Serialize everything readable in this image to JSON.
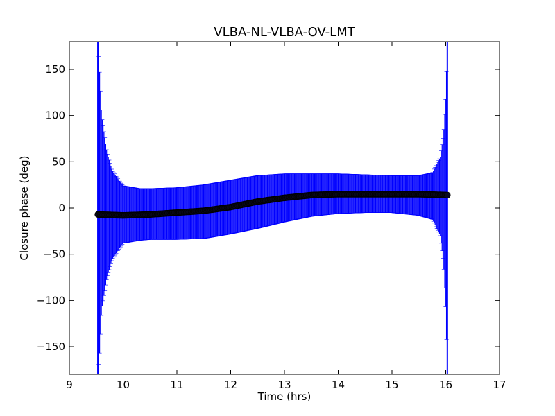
{
  "chart_data": {
    "type": "scatter",
    "title": "VLBA-NL-VLBA-OV-LMT",
    "xlabel": "Time (hrs)",
    "ylabel": "Closure phase (deg)",
    "xlim": [
      9,
      17
    ],
    "ylim": [
      -180,
      180
    ],
    "xticks": [
      9,
      10,
      11,
      12,
      13,
      14,
      15,
      16,
      17
    ],
    "yticks": [
      -150,
      -100,
      -50,
      0,
      50,
      100,
      150
    ],
    "xtick_labels": [
      "9",
      "10",
      "11",
      "12",
      "13",
      "14",
      "15",
      "16",
      "17"
    ],
    "ytick_labels": [
      "−150",
      "−100",
      "−50",
      "0",
      "50",
      "100",
      "150"
    ],
    "grid": false,
    "legend": "none",
    "time_range": [
      9.53,
      16.03
    ],
    "series": [
      {
        "role": "closure-phase-points",
        "marker": "circle",
        "color": "#000000",
        "x": [
          9.53,
          10.0,
          10.5,
          11.0,
          11.5,
          12.0,
          12.5,
          13.0,
          13.5,
          14.0,
          14.5,
          15.0,
          15.5,
          16.03
        ],
        "y": [
          -7,
          -8,
          -7,
          -5,
          -3,
          1,
          7,
          11,
          14,
          15,
          15,
          15,
          15,
          14
        ]
      },
      {
        "role": "error-bars",
        "color": "#0000ff",
        "x": [
          9.53,
          9.56,
          9.6,
          9.7,
          9.8,
          10.0,
          10.3,
          10.5,
          11.0,
          11.5,
          12.0,
          12.5,
          13.0,
          13.5,
          14.0,
          14.5,
          15.0,
          15.5,
          15.75,
          15.9,
          15.96,
          16.0,
          16.03
        ],
        "upper": [
          180,
          150,
          100,
          60,
          40,
          24,
          21,
          21,
          22,
          25,
          30,
          35,
          37,
          37,
          37,
          36,
          35,
          35,
          38,
          55,
          80,
          120,
          180
        ],
        "lower": [
          -180,
          -160,
          -110,
          -75,
          -55,
          -38,
          -35,
          -34,
          -34,
          -33,
          -28,
          -22,
          -15,
          -9,
          -6,
          -5,
          -5,
          -8,
          -12,
          -30,
          -60,
          -110,
          -180
        ]
      }
    ]
  }
}
